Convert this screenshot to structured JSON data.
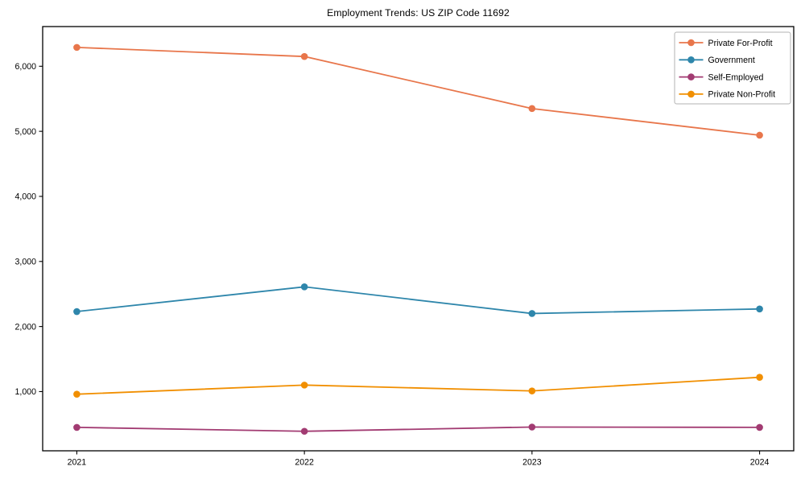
{
  "chart_data": {
    "type": "line",
    "title": "Employment Trends: US ZIP Code 11692",
    "categories": [
      "2021",
      "2022",
      "2023",
      "2024"
    ],
    "series": [
      {
        "name": "Private For-Profit",
        "color": "#e8764b",
        "values": [
          6290,
          6150,
          5350,
          4940
        ]
      },
      {
        "name": "Government",
        "color": "#2e86ab",
        "values": [
          2230,
          2610,
          2200,
          2270
        ]
      },
      {
        "name": "Self-Employed",
        "color": "#a23b72",
        "values": [
          450,
          390,
          455,
          450
        ]
      },
      {
        "name": "Private Non-Profit",
        "color": "#f18f01",
        "values": [
          960,
          1100,
          1010,
          1220
        ]
      }
    ],
    "xlabel": "",
    "ylabel": "",
    "ylim": [
      90,
      6610
    ],
    "yticks": [
      1000,
      2000,
      3000,
      4000,
      5000,
      6000
    ],
    "ytick_labels": [
      "1,000",
      "2,000",
      "3,000",
      "4,000",
      "5,000",
      "6,000"
    ],
    "legend_position": "upper right",
    "grid": false,
    "marker": "circle",
    "background": "#ffffff",
    "axis_color": "#000000",
    "text_color": "#000000",
    "legend_border_color": "#b3b3b3"
  }
}
